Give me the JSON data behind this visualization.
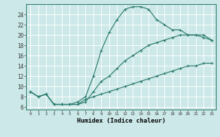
{
  "xlabel": "Humidex (Indice chaleur)",
  "bg_color": "#cce8e8",
  "line_color": "#2e7d6e",
  "grid_color": "#ffffff",
  "xlim": [
    -0.5,
    23.5
  ],
  "ylim": [
    5.5,
    26
  ],
  "xticks": [
    0,
    1,
    2,
    3,
    4,
    5,
    6,
    7,
    8,
    9,
    10,
    11,
    12,
    13,
    14,
    15,
    16,
    17,
    18,
    19,
    20,
    21,
    22,
    23
  ],
  "yticks": [
    6,
    8,
    10,
    12,
    14,
    16,
    18,
    20,
    22,
    24
  ],
  "curve_peak_x": [
    0,
    1,
    2,
    3,
    4,
    5,
    6,
    7,
    8,
    9,
    10,
    11,
    12,
    13,
    14,
    15,
    16,
    17,
    18,
    19,
    20,
    21,
    22,
    23
  ],
  "curve_peak_y": [
    9,
    8,
    8.5,
    6.5,
    6.5,
    6.5,
    7,
    8,
    12,
    17,
    20.5,
    23,
    25,
    25.5,
    25.5,
    25,
    23,
    22,
    21,
    21,
    20,
    20,
    20,
    19
  ],
  "curve_low_x": [
    0,
    1,
    2,
    3,
    4,
    5,
    6,
    7,
    8,
    9,
    10,
    11,
    12,
    13,
    14,
    15,
    16,
    17,
    18,
    19,
    20,
    21,
    22,
    23
  ],
  "curve_low_y": [
    9,
    8,
    8.5,
    6.5,
    6.5,
    6.5,
    6.5,
    7.5,
    8,
    8.5,
    9,
    9.5,
    10,
    10.5,
    11,
    11.5,
    12,
    12.5,
    13,
    13.5,
    14,
    14,
    14.5,
    14.5
  ],
  "curve_diag_x": [
    0,
    1,
    2,
    3,
    4,
    5,
    6,
    7,
    8,
    9,
    10,
    11,
    12,
    13,
    14,
    15,
    16,
    17,
    18,
    19,
    20,
    21,
    22,
    23
  ],
  "curve_diag_y": [
    9,
    8,
    8.5,
    6.5,
    6.5,
    6.5,
    6.5,
    7,
    9,
    11,
    12,
    13.5,
    15,
    16,
    17,
    18,
    18.5,
    19,
    19.5,
    20,
    20,
    20,
    19.5,
    19
  ]
}
